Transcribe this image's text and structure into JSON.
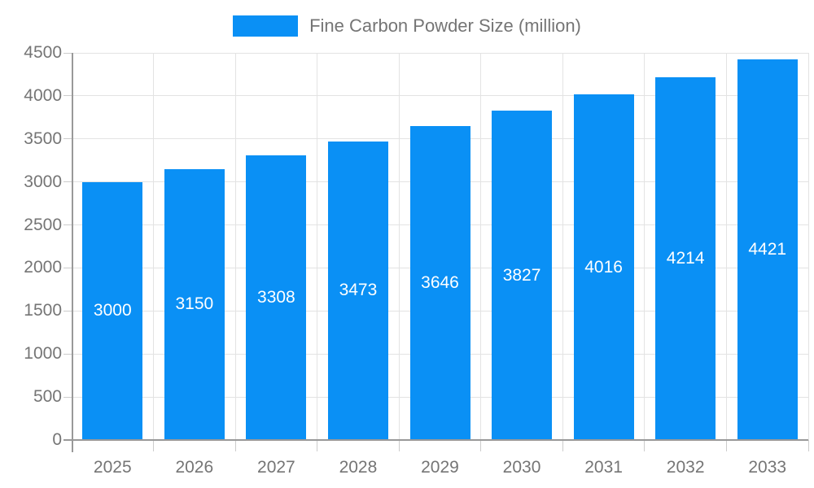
{
  "legend": {
    "position": "top"
  },
  "chart_data": {
    "type": "bar",
    "title": "",
    "categories": [
      "2025",
      "2026",
      "2027",
      "2028",
      "2029",
      "2030",
      "2031",
      "2032",
      "2033"
    ],
    "series": [
      {
        "name": "Fine Carbon Powder Size (million)",
        "values": [
          3000,
          3150,
          3308,
          3473,
          3646,
          3827,
          4016,
          4214,
          4421
        ]
      }
    ],
    "value_labels_shown": true,
    "xlabel": "",
    "ylabel": "",
    "ylim": [
      0,
      4500
    ],
    "yticks": [
      0,
      500,
      1000,
      1500,
      2000,
      2500,
      3000,
      3500,
      4000,
      4500
    ],
    "grid": true,
    "legend_position": "top",
    "colors": {
      "bar": "#0a90f5",
      "value_label": "#ffffff",
      "axis_text": "#757575",
      "legend_text": "#757575",
      "gridline": "#e3e3e3",
      "axis_line": "#999999",
      "tick": "#cccccc",
      "background": "#ffffff"
    }
  }
}
